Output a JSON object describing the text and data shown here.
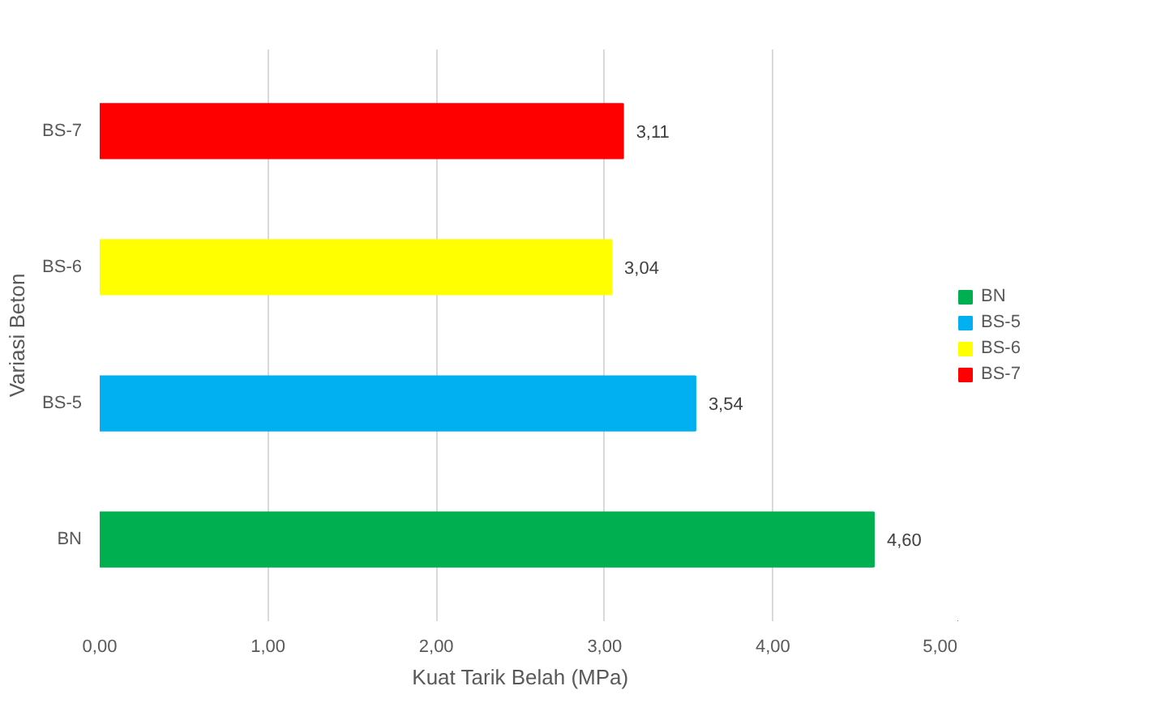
{
  "chart_data": {
    "type": "bar",
    "orientation": "horizontal",
    "xlabel": "Kuat Tarik Belah (MPa)",
    "ylabel": "Variasi Beton",
    "categories": [
      "BS-7",
      "BS-6",
      "BS-5",
      "BN"
    ],
    "series": [
      {
        "name": "BN",
        "color": "#00b050",
        "values": [
          null,
          null,
          null,
          4.6
        ],
        "value_labels": [
          null,
          null,
          null,
          "4,60"
        ]
      },
      {
        "name": "BS-5",
        "color": "#00b0f0",
        "values": [
          null,
          null,
          3.54,
          null
        ],
        "value_labels": [
          null,
          null,
          "3,54",
          null
        ]
      },
      {
        "name": "BS-6",
        "color": "#ffff00",
        "values": [
          null,
          3.04,
          null,
          null
        ],
        "value_labels": [
          null,
          "3,04",
          null,
          null
        ]
      },
      {
        "name": "BS-7",
        "color": "#ff0000",
        "values": [
          3.11,
          null,
          null,
          null
        ],
        "value_labels": [
          "3,11",
          null,
          null,
          null
        ]
      }
    ],
    "xlim": [
      0,
      5
    ],
    "xticks": [
      {
        "value": 0,
        "label": "0,00"
      },
      {
        "value": 1,
        "label": "1,00"
      },
      {
        "value": 2,
        "label": "2,00"
      },
      {
        "value": 3,
        "label": "3,00"
      },
      {
        "value": 4,
        "label": "4,00"
      },
      {
        "value": 5,
        "label": "5,00"
      }
    ],
    "grid": "x",
    "legend": "right"
  }
}
